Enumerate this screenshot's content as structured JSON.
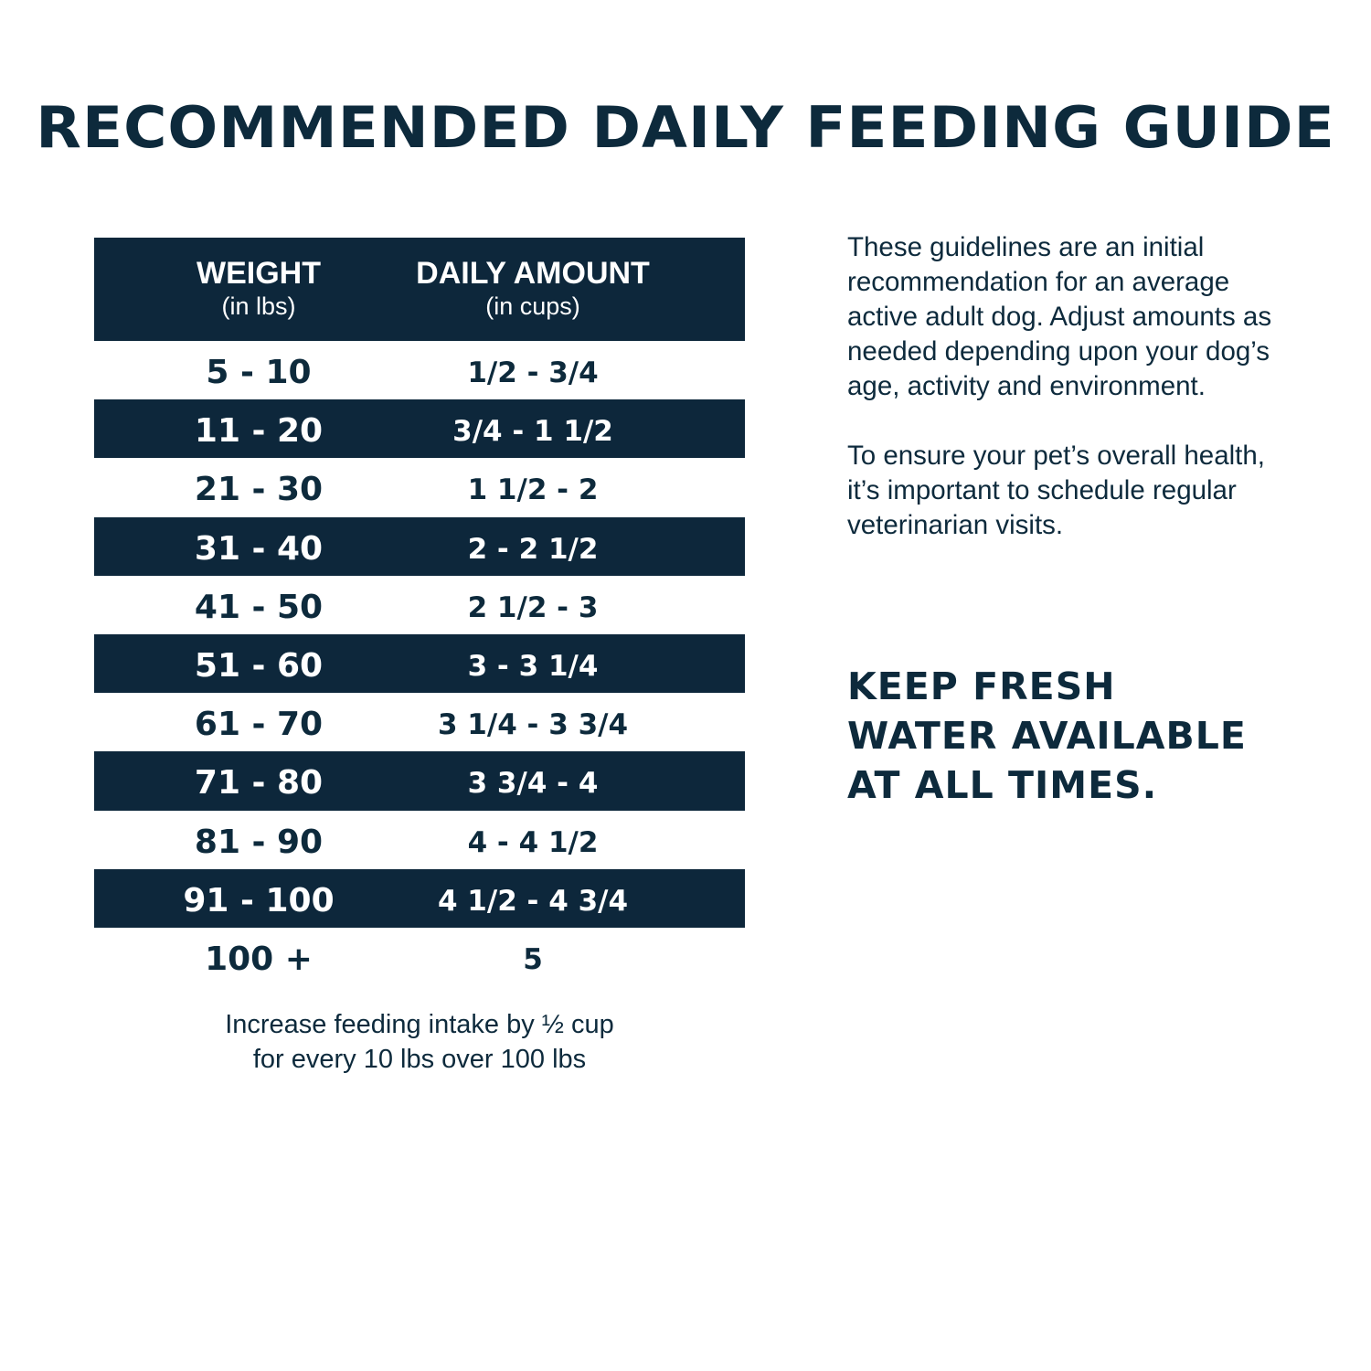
{
  "title": "RECOMMENDED DAILY FEEDING GUIDE",
  "table": {
    "headers": {
      "weight": "WEIGHT",
      "weight_unit": "(in lbs)",
      "amount": "DAILY AMOUNT",
      "amount_unit": "(in cups)"
    },
    "rows": [
      {
        "weight": "5 - 10",
        "amount": "1/2 - 3/4"
      },
      {
        "weight": "11 - 20",
        "amount": "3/4 - 1 1/2"
      },
      {
        "weight": "21 - 30",
        "amount": "1 1/2 - 2"
      },
      {
        "weight": "31 - 40",
        "amount": "2 - 2 1/2"
      },
      {
        "weight": "41 - 50",
        "amount": "2 1/2 - 3"
      },
      {
        "weight": "51 - 60",
        "amount": "3 - 3 1/4"
      },
      {
        "weight": "61 - 70",
        "amount": "3 1/4 - 3 3/4"
      },
      {
        "weight": "71 - 80",
        "amount": "3 3/4 - 4"
      },
      {
        "weight": "81 - 90",
        "amount": "4 - 4 1/2"
      },
      {
        "weight": "91 - 100",
        "amount": "4 1/2 - 4 3/4"
      },
      {
        "weight": "100 +",
        "amount": "5"
      }
    ]
  },
  "note": {
    "line1": "Increase feeding intake by ½ cup",
    "line2": "for every 10 lbs over 100 lbs"
  },
  "side": {
    "paragraph1": "These guidelines are an initial recommendation for an average active adult dog. Adjust amounts as needed depending upon your dog’s age, activity and environment.",
    "paragraph2": "To ensure your pet’s overall health, it’s important to schedule regular veterinarian visits.",
    "water": "KEEP FRESH WATER AVAILABLE AT ALL TIMES."
  },
  "colors": {
    "navy": "#0d273b",
    "text": "#0d2a3c",
    "background": "#ffffff"
  }
}
